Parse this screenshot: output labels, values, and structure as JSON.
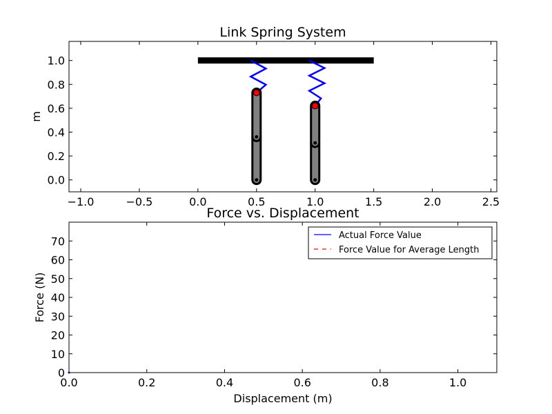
{
  "chart_data": [
    {
      "type": "scatter",
      "title": "Link Spring System",
      "xlabel": "",
      "ylabel": "m",
      "xlim": [
        -1.1,
        2.55
      ],
      "ylim": [
        -0.1,
        1.16
      ],
      "xticks": [
        "−1.0",
        "−0.5",
        "0.0",
        "0.5",
        "1.0",
        "1.5",
        "2.0",
        "2.5"
      ],
      "xtick_values": [
        -1.0,
        -0.5,
        0.0,
        0.5,
        1.0,
        1.5,
        2.0,
        2.5
      ],
      "yticks": [
        "0.0",
        "0.2",
        "0.4",
        "0.6",
        "0.8",
        "1.0"
      ],
      "ytick_values": [
        0.0,
        0.2,
        0.4,
        0.6,
        0.8,
        1.0
      ],
      "grid": false,
      "ceiling_bar": {
        "x": [
          0.0,
          1.5
        ],
        "y": 1.0,
        "color": "#000000"
      },
      "springs": [
        {
          "x": 0.5,
          "y_top": 1.0,
          "y_bottom": 0.73,
          "color": "#0000ff",
          "zigzag_x": [
            0.45,
            0.58,
            0.45,
            0.58,
            0.5
          ]
        },
        {
          "x": 1.0,
          "y_top": 1.0,
          "y_bottom": 0.62,
          "color": "#0000ff",
          "zigzag_x": [
            0.95,
            1.08,
            0.95,
            1.08,
            0.95,
            1.05,
            1.0
          ]
        }
      ],
      "links": [
        {
          "x": 0.5,
          "y_top": 0.73,
          "y_bottom": 0.0,
          "joints": [
            0.0,
            0.36,
            0.73
          ],
          "fill": "#808080"
        },
        {
          "x": 1.0,
          "y_top": 0.62,
          "y_bottom": 0.0,
          "joints": [
            0.0,
            0.31,
            0.62
          ],
          "fill": "#808080"
        }
      ],
      "attachment_points": [
        {
          "x": 0.5,
          "y": 0.73,
          "color": "#ff0000"
        },
        {
          "x": 1.0,
          "y": 0.62,
          "color": "#ff0000"
        }
      ]
    },
    {
      "type": "line",
      "title": "Force vs. Displacement",
      "xlabel": "Displacement (m)",
      "ylabel": "Force (N)",
      "xlim": [
        0.0,
        1.1
      ],
      "ylim": [
        0,
        80
      ],
      "xticks": [
        "0.0",
        "0.2",
        "0.4",
        "0.6",
        "0.8",
        "1.0"
      ],
      "xtick_values": [
        0.0,
        0.2,
        0.4,
        0.6,
        0.8,
        1.0
      ],
      "yticks": [
        "0",
        "10",
        "20",
        "30",
        "40",
        "50",
        "60",
        "70"
      ],
      "ytick_values": [
        0,
        10,
        20,
        30,
        40,
        50,
        60,
        70
      ],
      "grid": false,
      "legend_position": "top-right",
      "series": [
        {
          "name": "Actual Force Value",
          "color": "#0000ff",
          "dash": "solid",
          "x": [
            0.0
          ],
          "y": [
            0.0
          ]
        },
        {
          "name": "Force Value for Average Length",
          "color": "#ff0000",
          "dash": "dashed",
          "x": [],
          "y": []
        }
      ]
    }
  ]
}
